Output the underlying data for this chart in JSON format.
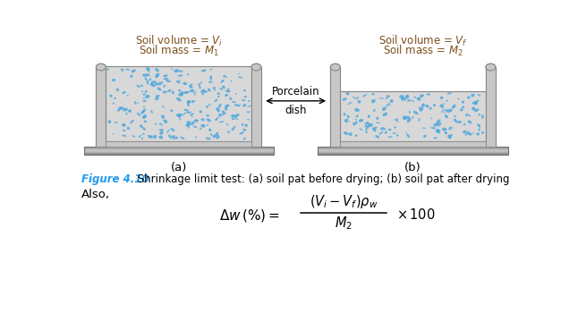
{
  "bg_color": "#ffffff",
  "soil_bg": "#d8d8d8",
  "soil_dot_color": "#55aadd",
  "wall_color": "#c8c8c8",
  "wall_edge": "#888888",
  "base_color": "#b0b0b0",
  "base_edge": "#707070",
  "figure_label_color": "#2299ee",
  "text_color": "#000000",
  "annotation_color": "#7b4f1a",
  "label_a": "(a)",
  "label_b": "(b)",
  "arrow_label_line1": "Porcelain",
  "arrow_label_line2": "dish",
  "caption_bold": "Figure 4.10",
  "caption_rest": " Shrinkage limit test: (a) soil pat before drying; (b) soil pat after drying",
  "also_text": "Also,",
  "left_label_line1": "Soil volume = $V_i$",
  "left_label_line2": "Soil mass = $M_1$",
  "right_label_line1": "Soil volume = $V_f$",
  "right_label_line2": "Soil mass = $M_2$"
}
